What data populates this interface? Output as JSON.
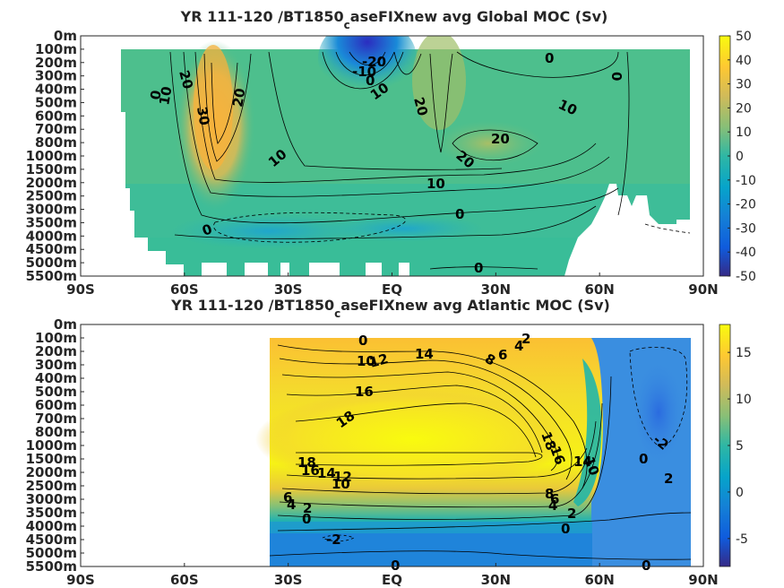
{
  "chart_data": [
    {
      "type": "heatmap",
      "subtype": "filled-contour",
      "title_main": "YR 111-120 /BT1850",
      "title_sub": "c",
      "title_rest": "aseFIXnew avg  Global MOC (Sv)",
      "x_ticks": [
        "90S",
        "60S",
        "30S",
        "EQ",
        "30N",
        "60N",
        "90N"
      ],
      "y_ticks": [
        "0m",
        "100m",
        "200m",
        "300m",
        "400m",
        "500m",
        "600m",
        "700m",
        "800m",
        "1000m",
        "1500m",
        "2000m",
        "2500m",
        "3000m",
        "3500m",
        "4000m",
        "4500m",
        "5000m",
        "5500m"
      ],
      "colorbar": {
        "min": -50,
        "max": 50,
        "ticks": [
          "50",
          "40",
          "30",
          "20",
          "10",
          "0",
          "-10",
          "-20",
          "-30",
          "-40",
          "-50"
        ]
      },
      "contour_labels": [
        "-20",
        "-10",
        "0",
        "10",
        "20",
        "20",
        "30",
        "20",
        "10",
        "0",
        "10",
        "20",
        "0",
        "10",
        "20",
        "10",
        "0",
        "0",
        "0",
        "0"
      ],
      "features": [
        {
          "name": "deacon-cell",
          "lat": -48,
          "depth": "1500m",
          "value": 32
        },
        {
          "name": "equatorial-cell",
          "lat": 0,
          "depth": "100m",
          "value": -25
        },
        {
          "name": "northern-cell",
          "lat": 25,
          "depth": "800m",
          "value": 24
        },
        {
          "name": "bottom-cell",
          "lat": -30,
          "depth": "4000m",
          "value": -4
        }
      ]
    },
    {
      "type": "heatmap",
      "subtype": "filled-contour",
      "title_main": "YR 111-120 /BT1850",
      "title_sub": "c",
      "title_rest": "aseFIXnew avg  Atlantic MOC (Sv)",
      "x_ticks": [
        "90S",
        "60S",
        "30S",
        "EQ",
        "30N",
        "60N",
        "90N"
      ],
      "y_ticks": [
        "0m",
        "100m",
        "200m",
        "300m",
        "400m",
        "500m",
        "600m",
        "700m",
        "800m",
        "1000m",
        "1500m",
        "2000m",
        "2500m",
        "3000m",
        "3500m",
        "4000m",
        "4500m",
        "5000m",
        "5500m"
      ],
      "colorbar": {
        "min": -8,
        "max": 18,
        "ticks": [
          "15",
          "10",
          "5",
          "0",
          "-5"
        ]
      },
      "contour_labels": [
        "0",
        "10",
        "12",
        "14",
        "2",
        "4",
        "6",
        "8",
        "16",
        "18",
        "18",
        "16",
        "18",
        "16",
        "14",
        "12",
        "10",
        "10",
        "14",
        "6",
        "4",
        "2",
        "0",
        "-2",
        "8",
        "6",
        "4",
        "2",
        "0",
        "0",
        "2",
        "-2",
        "0",
        "0"
      ],
      "features": [
        {
          "name": "amoc-core",
          "lat": 10,
          "depth": "1000m",
          "value": 18
        },
        {
          "name": "nordic-seas",
          "lat": 75,
          "depth": "500m",
          "value": -3
        },
        {
          "name": "deep-return",
          "lat": 0,
          "depth": "4500m",
          "value": -2
        }
      ]
    }
  ]
}
